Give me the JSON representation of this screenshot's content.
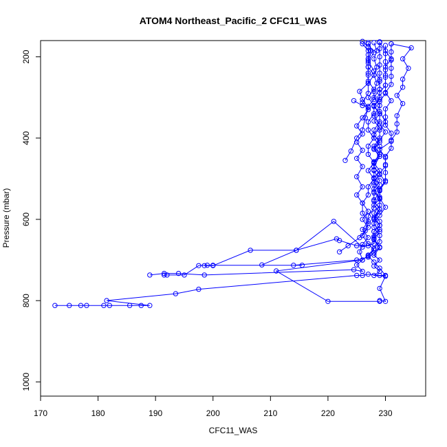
{
  "chart_data": {
    "type": "line",
    "title": "ATOM4 Northeast_Pacific_2 CFC11_WAS",
    "xlabel": "CFC11_WAS",
    "ylabel": "Pressure (mbar)",
    "xlim": [
      170,
      237
    ],
    "ylim": [
      1035,
      160
    ],
    "y_reversed": true,
    "x_ticks": [
      170,
      180,
      190,
      200,
      210,
      220,
      230
    ],
    "y_ticks": [
      200,
      400,
      600,
      800,
      1000
    ],
    "grid": false,
    "legend": "none",
    "series_color": "#0000ff",
    "marker": "open-circle",
    "series": [
      {
        "points": [
          [
            229,
            802
          ],
          [
            220,
            802
          ],
          [
            211,
            727
          ],
          [
            226,
            700
          ],
          [
            227,
            688
          ],
          [
            228,
            672
          ],
          [
            229,
            655
          ],
          [
            229,
            640
          ],
          [
            228,
            620
          ],
          [
            228,
            600
          ],
          [
            229,
            575
          ],
          [
            229,
            550
          ],
          [
            228,
            525
          ],
          [
            229,
            505
          ],
          [
            228,
            480
          ],
          [
            228,
            460
          ],
          [
            229,
            440
          ],
          [
            228,
            420
          ],
          [
            229,
            400
          ],
          [
            229,
            380
          ],
          [
            230,
            360
          ],
          [
            229,
            335
          ],
          [
            229,
            310
          ],
          [
            230,
            290
          ],
          [
            230,
            270
          ],
          [
            230,
            245
          ],
          [
            230,
            225
          ],
          [
            231,
            205
          ],
          [
            230,
            185
          ],
          [
            229,
            165
          ]
        ]
      },
      {
        "points": [
          [
            229,
            800
          ],
          [
            230,
            802
          ],
          [
            229,
            770
          ],
          [
            230,
            740
          ],
          [
            228,
            738
          ],
          [
            229,
            728
          ],
          [
            228,
            715
          ],
          [
            229,
            700
          ],
          [
            228,
            688
          ],
          [
            229,
            670
          ],
          [
            228,
            650
          ],
          [
            228,
            630
          ],
          [
            229,
            615
          ],
          [
            228,
            595
          ],
          [
            229,
            575
          ],
          [
            228,
            555
          ],
          [
            229,
            530
          ],
          [
            228,
            510
          ],
          [
            229,
            490
          ],
          [
            228,
            470
          ],
          [
            229,
            445
          ],
          [
            228,
            425
          ],
          [
            229,
            405
          ],
          [
            230,
            385
          ],
          [
            229,
            365
          ],
          [
            228,
            345
          ],
          [
            229,
            320
          ],
          [
            228,
            300
          ],
          [
            229,
            280
          ],
          [
            229,
            255
          ],
          [
            228,
            235
          ],
          [
            227,
            210
          ],
          [
            228,
            190
          ],
          [
            227,
            168
          ]
        ]
      },
      {
        "points": [
          [
            172.5,
            812
          ],
          [
            175,
            812
          ],
          [
            177,
            812
          ],
          [
            178,
            812
          ],
          [
            181,
            812
          ],
          [
            182,
            812
          ],
          [
            185.5,
            812
          ],
          [
            187.5,
            812
          ],
          [
            189,
            812
          ],
          [
            181.5,
            800
          ],
          [
            193.5,
            783
          ],
          [
            197.5,
            772
          ],
          [
            225,
            738
          ],
          [
            226,
            738
          ],
          [
            227,
            735
          ],
          [
            229,
            738
          ],
          [
            230,
            738
          ],
          [
            229,
            720
          ],
          [
            228,
            705
          ],
          [
            227,
            690
          ],
          [
            228,
            675
          ],
          [
            227,
            660
          ],
          [
            226,
            640
          ],
          [
            227,
            620
          ],
          [
            226,
            600
          ],
          [
            227,
            580
          ],
          [
            226,
            560
          ],
          [
            227,
            540
          ],
          [
            227,
            520
          ],
          [
            228,
            500
          ],
          [
            227,
            480
          ],
          [
            228,
            460
          ],
          [
            227,
            440
          ],
          [
            227,
            420
          ],
          [
            228,
            400
          ],
          [
            227,
            380
          ],
          [
            227,
            360
          ],
          [
            228,
            340
          ],
          [
            228,
            320
          ],
          [
            227,
            300
          ],
          [
            228,
            280
          ],
          [
            227,
            260
          ],
          [
            227,
            240
          ],
          [
            227,
            215
          ],
          [
            227,
            195
          ],
          [
            227,
            175
          ],
          [
            226,
            162
          ]
        ]
      },
      {
        "points": [
          [
            189,
            737
          ],
          [
            191.5,
            733
          ],
          [
            194,
            733
          ],
          [
            198.5,
            737
          ],
          [
            224.5,
            724
          ],
          [
            226,
            728
          ],
          [
            225,
            712
          ],
          [
            226,
            700
          ],
          [
            225.5,
            680
          ],
          [
            226,
            662
          ],
          [
            227,
            645
          ],
          [
            226,
            625
          ],
          [
            227,
            605
          ],
          [
            226,
            585
          ],
          [
            226,
            560
          ],
          [
            225,
            540
          ],
          [
            226,
            520
          ],
          [
            225,
            495
          ],
          [
            226,
            470
          ],
          [
            225,
            450
          ],
          [
            226,
            430
          ],
          [
            225,
            410
          ],
          [
            226,
            390
          ],
          [
            225,
            370
          ],
          [
            226,
            350
          ],
          [
            227,
            330
          ],
          [
            226,
            312
          ],
          [
            227,
            290
          ],
          [
            227,
            265
          ],
          [
            228,
            245
          ],
          [
            227,
            225
          ],
          [
            227,
            205
          ],
          [
            227,
            185
          ],
          [
            226,
            168
          ]
        ]
      },
      {
        "points": [
          [
            191.5,
            737
          ],
          [
            192,
            737
          ],
          [
            195,
            737
          ],
          [
            197.5,
            714
          ],
          [
            199,
            713
          ],
          [
            200,
            713
          ],
          [
            215.5,
            713
          ],
          [
            214,
            713
          ],
          [
            225,
            700
          ],
          [
            227,
            693
          ],
          [
            228,
            683
          ],
          [
            229,
            668
          ],
          [
            228,
            648
          ],
          [
            229,
            630
          ],
          [
            228,
            610
          ],
          [
            229,
            590
          ],
          [
            230,
            570
          ],
          [
            229,
            548
          ],
          [
            229,
            528
          ],
          [
            230,
            508
          ],
          [
            229,
            488
          ],
          [
            230,
            468
          ],
          [
            230,
            448
          ],
          [
            229,
            428
          ],
          [
            231,
            408
          ],
          [
            231,
            388
          ],
          [
            230,
            368
          ],
          [
            230,
            348
          ],
          [
            230,
            328
          ],
          [
            231,
            308
          ],
          [
            230,
            288
          ],
          [
            231,
            268
          ],
          [
            231,
            248
          ],
          [
            231,
            228
          ],
          [
            231,
            208
          ],
          [
            231,
            188
          ],
          [
            231,
            168
          ]
        ]
      },
      {
        "points": [
          [
            198.5,
            714
          ],
          [
            200,
            714
          ],
          [
            206.5,
            676
          ],
          [
            214.5,
            676
          ],
          [
            221.5,
            648
          ],
          [
            222,
            652
          ],
          [
            225,
            665
          ],
          [
            227,
            665
          ],
          [
            228,
            660
          ],
          [
            228,
            645
          ],
          [
            228,
            630
          ],
          [
            229,
            615
          ],
          [
            228,
            598
          ],
          [
            229,
            582
          ],
          [
            228,
            565
          ],
          [
            229,
            550
          ],
          [
            228,
            532
          ],
          [
            229,
            515
          ],
          [
            228,
            498
          ],
          [
            229,
            480
          ],
          [
            228,
            462
          ],
          [
            229,
            445
          ],
          [
            228,
            428
          ],
          [
            229,
            410
          ],
          [
            228,
            392
          ],
          [
            229,
            375
          ],
          [
            228,
            358
          ],
          [
            229,
            340
          ],
          [
            228,
            322
          ],
          [
            229,
            305
          ],
          [
            229,
            288
          ],
          [
            230,
            270
          ],
          [
            230,
            250
          ],
          [
            230,
            232
          ],
          [
            230,
            212
          ],
          [
            230,
            192
          ],
          [
            230,
            172
          ]
        ]
      },
      {
        "points": [
          [
            208.5,
            712
          ],
          [
            214.5,
            676
          ],
          [
            221,
            605
          ],
          [
            226,
            668
          ],
          [
            228,
            660
          ],
          [
            228,
            642
          ],
          [
            229,
            625
          ],
          [
            229,
            605
          ],
          [
            228,
            585
          ],
          [
            229,
            565
          ],
          [
            229,
            545
          ],
          [
            229,
            525
          ],
          [
            230,
            505
          ],
          [
            230,
            485
          ],
          [
            230,
            465
          ],
          [
            230,
            445
          ],
          [
            231,
            425
          ],
          [
            231,
            405
          ],
          [
            232,
            385
          ],
          [
            232,
            365
          ],
          [
            232,
            345
          ],
          [
            233,
            315
          ],
          [
            232,
            295
          ],
          [
            233,
            275
          ],
          [
            233,
            255
          ],
          [
            234,
            228
          ],
          [
            233,
            205
          ],
          [
            234.5,
            178
          ],
          [
            231,
            168
          ]
        ]
      },
      {
        "points": [
          [
            222,
            680
          ],
          [
            223.5,
            665
          ],
          [
            225.5,
            645
          ],
          [
            226.5,
            628
          ],
          [
            227,
            610
          ],
          [
            227,
            592
          ],
          [
            228,
            572
          ],
          [
            228,
            552
          ],
          [
            228,
            535
          ],
          [
            228,
            515
          ],
          [
            228,
            498
          ],
          [
            228,
            478
          ],
          [
            228,
            458
          ],
          [
            229,
            440
          ],
          [
            229,
            420
          ],
          [
            228,
            400
          ],
          [
            228,
            380
          ],
          [
            229,
            360
          ],
          [
            229,
            340
          ],
          [
            228,
            320
          ],
          [
            229,
            300
          ],
          [
            229,
            280
          ],
          [
            229,
            260
          ],
          [
            229,
            240
          ],
          [
            229,
            220
          ],
          [
            229,
            200
          ],
          [
            229,
            180
          ],
          [
            229,
            163
          ]
        ]
      },
      {
        "points": [
          [
            223,
            455
          ],
          [
            224,
            432
          ],
          [
            225,
            400
          ],
          [
            226,
            380
          ],
          [
            226.5,
            350
          ],
          [
            227,
            325
          ],
          [
            226,
            305
          ],
          [
            225.5,
            285
          ],
          [
            227,
            265
          ],
          [
            227,
            245
          ],
          [
            227,
            225
          ],
          [
            227,
            205
          ],
          [
            227.5,
            185
          ],
          [
            227,
            165
          ]
        ]
      },
      {
        "points": [
          [
            224.5,
            308
          ],
          [
            226,
            320
          ],
          [
            227,
            322
          ],
          [
            228,
            305
          ],
          [
            228,
            285
          ],
          [
            228.5,
            265
          ],
          [
            228,
            245
          ],
          [
            228.5,
            225
          ],
          [
            228,
            205
          ],
          [
            228.5,
            185
          ],
          [
            228,
            165
          ]
        ]
      }
    ]
  }
}
